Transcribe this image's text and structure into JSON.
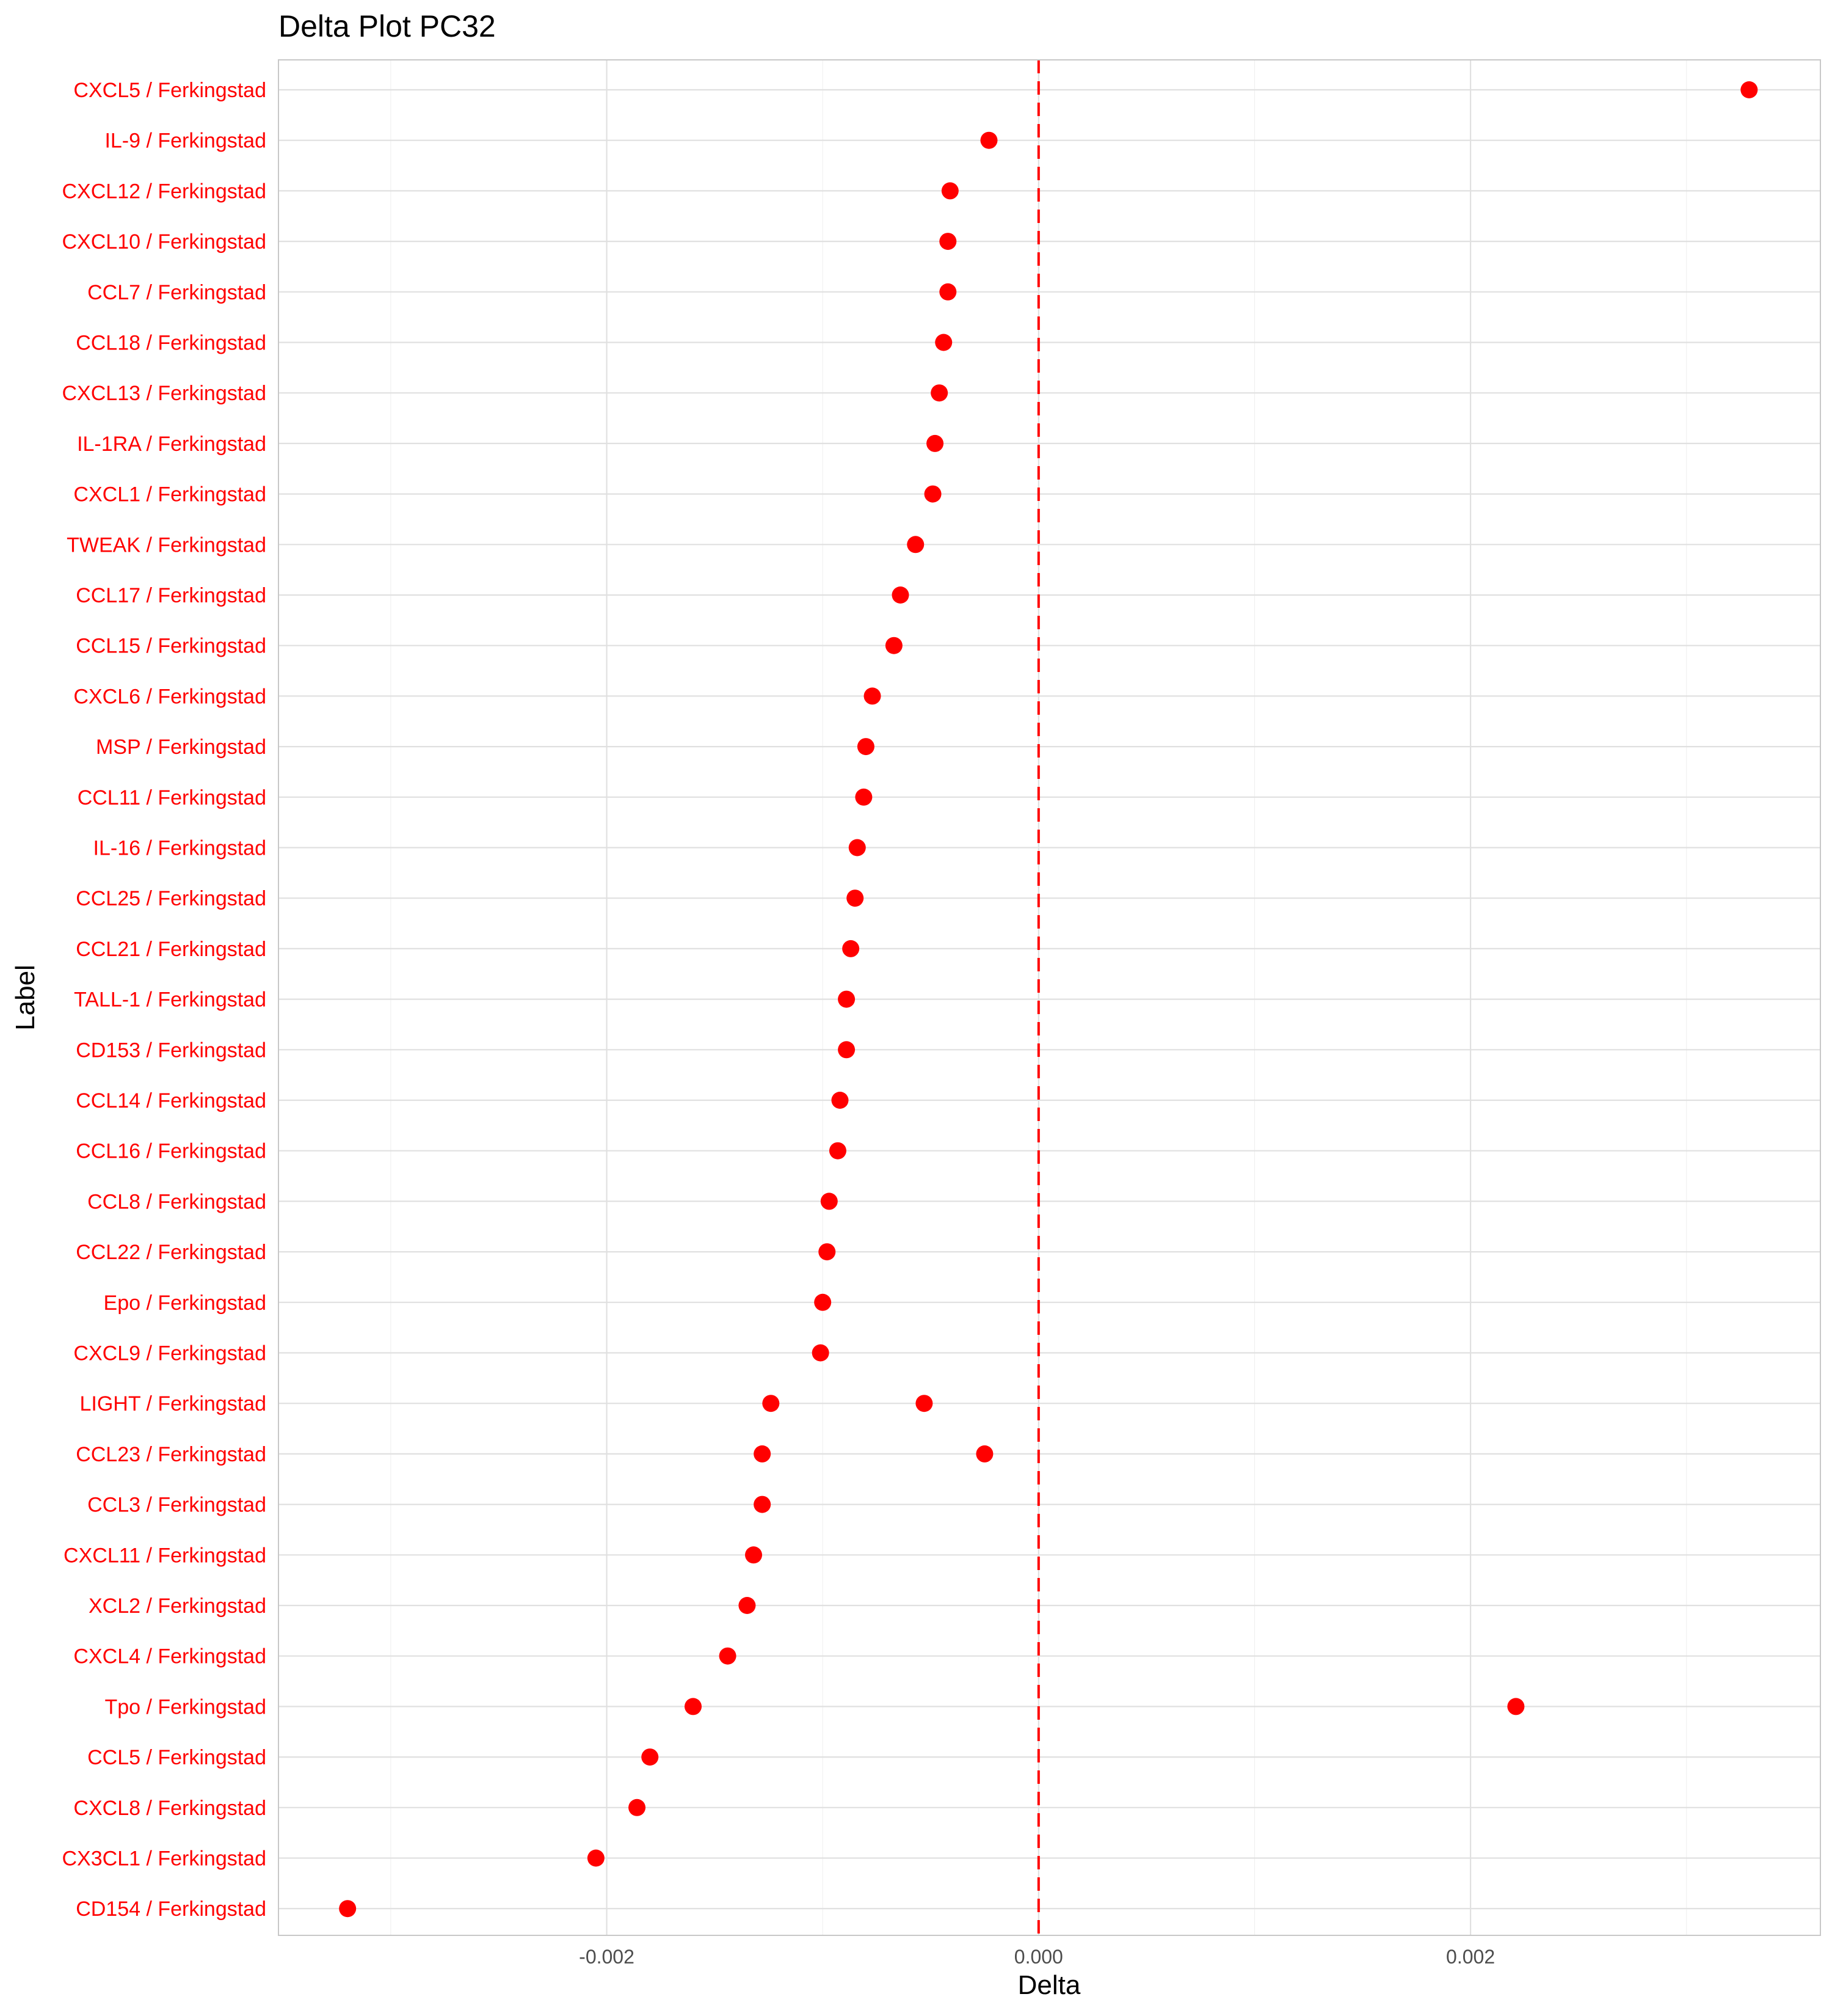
{
  "chart_data": {
    "type": "scatter",
    "title": "Delta Plot PC32",
    "xlabel": "Delta",
    "ylabel": "Label",
    "xlim": [
      -0.00352,
      0.00362
    ],
    "x_ticks": [
      -0.002,
      0.0,
      0.002
    ],
    "x_tick_labels": [
      "-0.002",
      "0.000",
      "0.002"
    ],
    "reference_line": {
      "x": 0.0,
      "style": "dashed",
      "color": "#ff0000"
    },
    "point_color": "#ff0000",
    "label_color": "#ff0000",
    "grid": true,
    "categories": [
      "CXCL5 / Ferkingstad",
      "IL-9 / Ferkingstad",
      "CXCL12 / Ferkingstad",
      "CXCL10 / Ferkingstad",
      "CCL7 / Ferkingstad",
      "CCL18 / Ferkingstad",
      "CXCL13 / Ferkingstad",
      "IL-1RA / Ferkingstad",
      "CXCL1 / Ferkingstad",
      "TWEAK / Ferkingstad",
      "CCL17 / Ferkingstad",
      "CCL15 / Ferkingstad",
      "CXCL6 / Ferkingstad",
      "MSP / Ferkingstad",
      "CCL11 / Ferkingstad",
      "IL-16 / Ferkingstad",
      "CCL25 / Ferkingstad",
      "CCL21 / Ferkingstad",
      "TALL-1 / Ferkingstad",
      "CD153 / Ferkingstad",
      "CCL14 / Ferkingstad",
      "CCL16 / Ferkingstad",
      "CCL8 / Ferkingstad",
      "CCL22 / Ferkingstad",
      "Epo / Ferkingstad",
      "CXCL9 / Ferkingstad",
      "LIGHT / Ferkingstad",
      "CCL23 / Ferkingstad",
      "CCL3 / Ferkingstad",
      "CXCL11 / Ferkingstad",
      "XCL2 / Ferkingstad",
      "CXCL4 / Ferkingstad",
      "Tpo / Ferkingstad",
      "CCL5 / Ferkingstad",
      "CXCL8 / Ferkingstad",
      "CX3CL1 / Ferkingstad",
      "CD154 / Ferkingstad"
    ],
    "points": [
      {
        "label": "CXCL5 / Ferkingstad",
        "x": [
          0.00329
        ]
      },
      {
        "label": "IL-9 / Ferkingstad",
        "x": [
          -0.00023
        ]
      },
      {
        "label": "CXCL12 / Ferkingstad",
        "x": [
          -0.00041
        ]
      },
      {
        "label": "CXCL10 / Ferkingstad",
        "x": [
          -0.00042
        ]
      },
      {
        "label": "CCL7 / Ferkingstad",
        "x": [
          -0.00042
        ]
      },
      {
        "label": "CCL18 / Ferkingstad",
        "x": [
          -0.00044
        ]
      },
      {
        "label": "CXCL13 / Ferkingstad",
        "x": [
          -0.00046
        ]
      },
      {
        "label": "IL-1RA / Ferkingstad",
        "x": [
          -0.00048
        ]
      },
      {
        "label": "CXCL1 / Ferkingstad",
        "x": [
          -0.00049
        ]
      },
      {
        "label": "TWEAK / Ferkingstad",
        "x": [
          -0.00057
        ]
      },
      {
        "label": "CCL17 / Ferkingstad",
        "x": [
          -0.00064
        ]
      },
      {
        "label": "CCL15 / Ferkingstad",
        "x": [
          -0.00067
        ]
      },
      {
        "label": "CXCL6 / Ferkingstad",
        "x": [
          -0.00077
        ]
      },
      {
        "label": "MSP / Ferkingstad",
        "x": [
          -0.0008
        ]
      },
      {
        "label": "CCL11 / Ferkingstad",
        "x": [
          -0.00081
        ]
      },
      {
        "label": "IL-16 / Ferkingstad",
        "x": [
          -0.00084
        ]
      },
      {
        "label": "CCL25 / Ferkingstad",
        "x": [
          -0.00085
        ]
      },
      {
        "label": "CCL21 / Ferkingstad",
        "x": [
          -0.00087
        ]
      },
      {
        "label": "TALL-1 / Ferkingstad",
        "x": [
          -0.00089
        ]
      },
      {
        "label": "CD153 / Ferkingstad",
        "x": [
          -0.00089
        ]
      },
      {
        "label": "CCL14 / Ferkingstad",
        "x": [
          -0.00092
        ]
      },
      {
        "label": "CCL16 / Ferkingstad",
        "x": [
          -0.00093
        ]
      },
      {
        "label": "CCL8 / Ferkingstad",
        "x": [
          -0.00097
        ]
      },
      {
        "label": "CCL22 / Ferkingstad",
        "x": [
          -0.00098
        ]
      },
      {
        "label": "Epo / Ferkingstad",
        "x": [
          -0.001
        ]
      },
      {
        "label": "CXCL9 / Ferkingstad",
        "x": [
          -0.00101
        ]
      },
      {
        "label": "LIGHT / Ferkingstad",
        "x": [
          -0.00124,
          -0.00053
        ]
      },
      {
        "label": "CCL23 / Ferkingstad",
        "x": [
          -0.00128,
          -0.00025
        ]
      },
      {
        "label": "CCL3 / Ferkingstad",
        "x": [
          -0.00128
        ]
      },
      {
        "label": "CXCL11 / Ferkingstad",
        "x": [
          -0.00132
        ]
      },
      {
        "label": "XCL2 / Ferkingstad",
        "x": [
          -0.00135
        ]
      },
      {
        "label": "CXCL4 / Ferkingstad",
        "x": [
          -0.00144
        ]
      },
      {
        "label": "Tpo / Ferkingstad",
        "x": [
          -0.0016,
          0.00221
        ]
      },
      {
        "label": "CCL5 / Ferkingstad",
        "x": [
          -0.0018
        ]
      },
      {
        "label": "CXCL8 / Ferkingstad",
        "x": [
          -0.00186
        ]
      },
      {
        "label": "CX3CL1 / Ferkingstad",
        "x": [
          -0.00205
        ]
      },
      {
        "label": "CD154 / Ferkingstad",
        "x": [
          -0.0032
        ]
      }
    ]
  }
}
